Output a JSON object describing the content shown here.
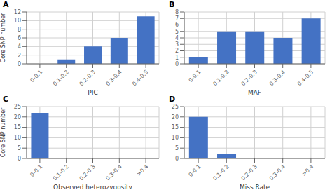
{
  "chart_data": [
    {
      "type": "bar",
      "title": "A",
      "categories": [
        "0-0.1",
        "0.1-0.2",
        "0.2-0.3",
        "0.3-0.4",
        "0.4-0.5"
      ],
      "values": [
        0,
        1,
        4,
        6,
        11
      ],
      "xlabel": "PIC",
      "ylabel": "Core SNP number",
      "ylim": [
        0,
        12
      ],
      "yticks": [
        0,
        2,
        4,
        6,
        8,
        10,
        12
      ],
      "color": "#4472C4",
      "grid": true
    },
    {
      "type": "bar",
      "title": "B",
      "categories": [
        "0-0.1",
        "0.1-0.2",
        "0.2-0.3",
        "0.3-0.4",
        "0.4-0.5"
      ],
      "values": [
        1,
        5,
        5,
        4,
        7
      ],
      "xlabel": "MAF",
      "ylim": [
        0,
        8
      ],
      "yticks": [
        0,
        1,
        2,
        3,
        4,
        5,
        6,
        7,
        8
      ],
      "color": "#4472C4",
      "grid": true
    },
    {
      "type": "bar",
      "title": "C",
      "categories": [
        "0-0.1",
        "0.1-0.2",
        "0.2-0.3",
        "0.3-0.4",
        ">0.4"
      ],
      "values": [
        22,
        0,
        0,
        0,
        0
      ],
      "xlabel": "Observed heterozygosity",
      "ylabel": "Core SNP number",
      "ylim": [
        0,
        25
      ],
      "yticks": [
        0,
        5,
        10,
        15,
        20,
        25
      ],
      "color": "#4472C4",
      "grid": true
    },
    {
      "type": "bar",
      "title": "D",
      "categories": [
        "0-0.1",
        "0.1-0.2",
        "0.2-0.3",
        "0.3-0.4",
        ">0.4"
      ],
      "values": [
        20,
        2,
        0,
        0,
        0
      ],
      "xlabel": "Miss Rate",
      "ylim": [
        0,
        25
      ],
      "yticks": [
        0,
        5,
        10,
        15,
        20,
        25
      ],
      "color": "#4472C4",
      "grid": true
    }
  ]
}
